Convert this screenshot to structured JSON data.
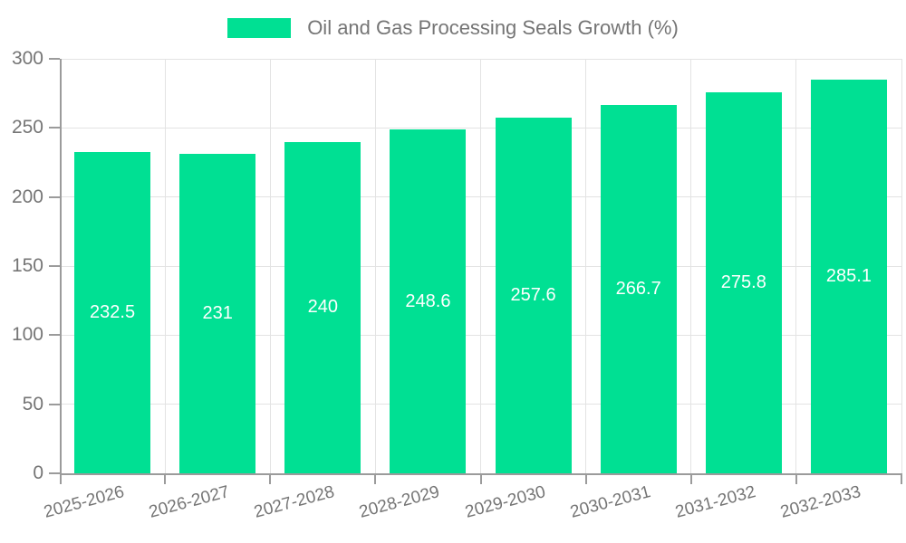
{
  "legend": {
    "label": "Oil and Gas Processing Seals Growth (%)"
  },
  "chart_data": {
    "type": "bar",
    "title": "Oil and Gas Processing Seals Growth (%)",
    "categories": [
      "2025-2026",
      "2026-2027",
      "2027-2028",
      "2028-2029",
      "2029-2030",
      "2030-2031",
      "2031-2032",
      "2032-2033"
    ],
    "values": [
      232.5,
      231,
      240,
      248.6,
      257.6,
      266.7,
      275.8,
      285.1
    ],
    "value_labels": [
      "232.5",
      "231",
      "240",
      "248.6",
      "257.6",
      "266.7",
      "275.8",
      "285.1"
    ],
    "xlabel": "",
    "ylabel": "",
    "ylim": [
      0,
      300
    ],
    "yticks": [
      0,
      50,
      100,
      150,
      200,
      250,
      300
    ],
    "grid": true,
    "legend_position": "top",
    "colors": {
      "bar": "#00E093",
      "bar_label": "#ffffff",
      "axis": "#9b9b9b",
      "gridline": "#e3e3e3",
      "text": "#757575"
    }
  }
}
